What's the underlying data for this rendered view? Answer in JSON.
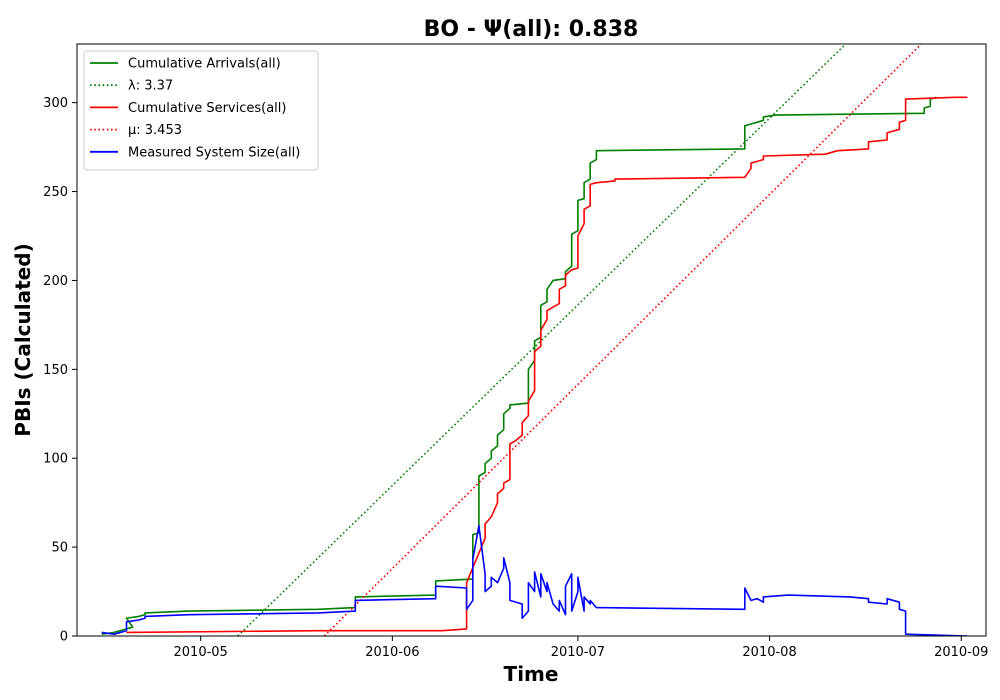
{
  "chart_data": {
    "type": "line",
    "title": "BO -  Ψ(all): 0.838",
    "xlabel": "Time",
    "ylabel": "PBIs (Calculated)",
    "xlim": [
      "2010-04-11",
      "2010-09-05"
    ],
    "ylim": [
      0,
      333
    ],
    "x_tick_labels": [
      "2010-05",
      "2010-06",
      "2010-07",
      "2010-08",
      "2010-09"
    ],
    "x_tick_dates": [
      "2010-05-01",
      "2010-06-01",
      "2010-07-01",
      "2010-08-01",
      "2010-09-01"
    ],
    "y_ticks": [
      0,
      50,
      100,
      150,
      200,
      250,
      300
    ],
    "grid": false,
    "legend_position": "top-left",
    "series": [
      {
        "name": "Cumulative Arrivals(all)",
        "style": "solid",
        "color": "#008000",
        "points": [
          [
            "2010-04-15",
            1
          ],
          [
            "2010-04-17",
            2
          ],
          [
            "2010-04-19",
            4
          ],
          [
            "2010-04-20",
            5
          ],
          [
            "2010-04-19",
            10
          ],
          [
            "2010-04-21",
            11
          ],
          [
            "2010-04-22",
            12
          ],
          [
            "2010-04-22",
            13
          ],
          [
            "2010-04-29",
            14
          ],
          [
            "2010-05-20",
            15
          ],
          [
            "2010-05-26",
            16
          ],
          [
            "2010-05-26",
            22
          ],
          [
            "2010-06-08",
            23
          ],
          [
            "2010-06-08",
            31
          ],
          [
            "2010-06-14",
            32
          ],
          [
            "2010-06-14",
            33
          ],
          [
            "2010-06-14",
            57
          ],
          [
            "2010-06-15",
            58
          ],
          [
            "2010-06-15",
            90
          ],
          [
            "2010-06-16",
            92
          ],
          [
            "2010-06-16",
            97
          ],
          [
            "2010-06-17",
            100
          ],
          [
            "2010-06-17",
            104
          ],
          [
            "2010-06-18",
            107
          ],
          [
            "2010-06-18",
            113
          ],
          [
            "2010-06-19",
            116
          ],
          [
            "2010-06-19",
            121
          ],
          [
            "2010-06-19",
            125
          ],
          [
            "2010-06-20",
            128
          ],
          [
            "2010-06-20",
            130
          ],
          [
            "2010-06-23",
            131
          ],
          [
            "2010-06-23",
            145
          ],
          [
            "2010-06-23",
            150
          ],
          [
            "2010-06-24",
            155
          ],
          [
            "2010-06-24",
            166
          ],
          [
            "2010-06-25",
            168
          ],
          [
            "2010-06-25",
            186
          ],
          [
            "2010-06-26",
            188
          ],
          [
            "2010-06-26",
            195
          ],
          [
            "2010-06-27",
            200
          ],
          [
            "2010-06-29",
            201
          ],
          [
            "2010-06-29",
            205
          ],
          [
            "2010-06-30",
            208
          ],
          [
            "2010-06-30",
            226
          ],
          [
            "2010-07-01",
            228
          ],
          [
            "2010-07-01",
            245
          ],
          [
            "2010-07-02",
            246
          ],
          [
            "2010-07-02",
            255
          ],
          [
            "2010-07-03",
            257
          ],
          [
            "2010-07-03",
            266
          ],
          [
            "2010-07-04",
            268
          ],
          [
            "2010-07-04",
            273
          ],
          [
            "2010-07-28",
            274
          ],
          [
            "2010-07-28",
            287
          ],
          [
            "2010-07-29",
            288
          ],
          [
            "2010-07-31",
            290
          ],
          [
            "2010-07-31",
            292
          ],
          [
            "2010-08-02",
            293
          ],
          [
            "2010-08-26",
            294
          ],
          [
            "2010-08-26",
            297
          ],
          [
            "2010-08-27",
            298
          ],
          [
            "2010-08-27",
            302
          ],
          [
            "2010-08-28",
            303
          ]
        ]
      },
      {
        "name": "λ: 3.37",
        "style": "dotted",
        "color": "#008000",
        "points": [
          [
            "2010-05-07",
            0
          ],
          [
            "2010-08-26",
            376
          ]
        ]
      },
      {
        "name": "Cumulative Services(all)",
        "style": "solid",
        "color": "#ff0000",
        "points": [
          [
            "2010-04-19",
            2
          ],
          [
            "2010-05-20",
            3
          ],
          [
            "2010-06-09",
            3
          ],
          [
            "2010-06-13",
            4
          ],
          [
            "2010-06-13",
            30
          ],
          [
            "2010-06-16",
            55
          ],
          [
            "2010-06-16",
            63
          ],
          [
            "2010-06-17",
            67
          ],
          [
            "2010-06-18",
            75
          ],
          [
            "2010-06-18",
            80
          ],
          [
            "2010-06-19",
            83
          ],
          [
            "2010-06-19",
            86
          ],
          [
            "2010-06-20",
            88
          ],
          [
            "2010-06-20",
            108
          ],
          [
            "2010-06-21",
            110
          ],
          [
            "2010-06-22",
            113
          ],
          [
            "2010-06-22",
            120
          ],
          [
            "2010-06-23",
            124
          ],
          [
            "2010-06-23",
            132
          ],
          [
            "2010-06-24",
            138
          ],
          [
            "2010-06-24",
            160
          ],
          [
            "2010-06-25",
            163
          ],
          [
            "2010-06-25",
            172
          ],
          [
            "2010-06-26",
            178
          ],
          [
            "2010-06-26",
            183
          ],
          [
            "2010-06-27",
            185
          ],
          [
            "2010-06-28",
            187
          ],
          [
            "2010-06-28",
            195
          ],
          [
            "2010-06-29",
            197
          ],
          [
            "2010-06-29",
            203
          ],
          [
            "2010-06-30",
            206
          ],
          [
            "2010-07-01",
            207
          ],
          [
            "2010-07-01",
            225
          ],
          [
            "2010-07-02",
            232
          ],
          [
            "2010-07-02",
            240
          ],
          [
            "2010-07-03",
            242
          ],
          [
            "2010-07-03",
            254
          ],
          [
            "2010-07-04",
            255
          ],
          [
            "2010-07-07",
            256
          ],
          [
            "2010-07-07",
            257
          ],
          [
            "2010-07-28",
            258
          ],
          [
            "2010-07-29",
            263
          ],
          [
            "2010-07-29",
            266
          ],
          [
            "2010-07-31",
            268
          ],
          [
            "2010-07-31",
            270
          ],
          [
            "2010-08-10",
            271
          ],
          [
            "2010-08-12",
            273
          ],
          [
            "2010-08-17",
            274
          ],
          [
            "2010-08-17",
            278
          ],
          [
            "2010-08-20",
            279
          ],
          [
            "2010-08-20",
            283
          ],
          [
            "2010-08-22",
            285
          ],
          [
            "2010-08-22",
            289
          ],
          [
            "2010-08-23",
            290
          ],
          [
            "2010-08-23",
            302
          ],
          [
            "2010-08-31",
            303
          ],
          [
            "2010-09-02",
            303
          ]
        ]
      },
      {
        "name": "μ: 3.453",
        "style": "dotted",
        "color": "#ff0000",
        "points": [
          [
            "2010-05-21",
            0
          ],
          [
            "2010-08-27",
            338
          ]
        ]
      },
      {
        "name": "Measured System Size(all)",
        "style": "solid",
        "color": "#0000ff",
        "points": [
          [
            "2010-04-15",
            2
          ],
          [
            "2010-04-17",
            1
          ],
          [
            "2010-04-19",
            3
          ],
          [
            "2010-04-19",
            8
          ],
          [
            "2010-04-21",
            9
          ],
          [
            "2010-04-22",
            10
          ],
          [
            "2010-04-22",
            11
          ],
          [
            "2010-04-29",
            12
          ],
          [
            "2010-05-20",
            13
          ],
          [
            "2010-05-26",
            14
          ],
          [
            "2010-05-26",
            20
          ],
          [
            "2010-06-08",
            21
          ],
          [
            "2010-06-08",
            28
          ],
          [
            "2010-06-13",
            27
          ],
          [
            "2010-06-13",
            15
          ],
          [
            "2010-06-14",
            20
          ],
          [
            "2010-06-14",
            43
          ],
          [
            "2010-06-15",
            62
          ],
          [
            "2010-06-16",
            35
          ],
          [
            "2010-06-16",
            25
          ],
          [
            "2010-06-17",
            28
          ],
          [
            "2010-06-17",
            33
          ],
          [
            "2010-06-18",
            30
          ],
          [
            "2010-06-19",
            38
          ],
          [
            "2010-06-19",
            44
          ],
          [
            "2010-06-20",
            30
          ],
          [
            "2010-06-20",
            20
          ],
          [
            "2010-06-22",
            18
          ],
          [
            "2010-06-22",
            10
          ],
          [
            "2010-06-23",
            14
          ],
          [
            "2010-06-23",
            30
          ],
          [
            "2010-06-24",
            25
          ],
          [
            "2010-06-24",
            36
          ],
          [
            "2010-06-25",
            22
          ],
          [
            "2010-06-25",
            35
          ],
          [
            "2010-06-26",
            25
          ],
          [
            "2010-06-26",
            30
          ],
          [
            "2010-06-27",
            18
          ],
          [
            "2010-06-28",
            14
          ],
          [
            "2010-06-28",
            20
          ],
          [
            "2010-06-29",
            12
          ],
          [
            "2010-06-29",
            28
          ],
          [
            "2010-06-30",
            35
          ],
          [
            "2010-06-30",
            14
          ],
          [
            "2010-07-01",
            25
          ],
          [
            "2010-07-01",
            33
          ],
          [
            "2010-07-02",
            14
          ],
          [
            "2010-07-02",
            22
          ],
          [
            "2010-07-03",
            18
          ],
          [
            "2010-07-03",
            20
          ],
          [
            "2010-07-04",
            16
          ],
          [
            "2010-07-28",
            15
          ],
          [
            "2010-07-28",
            27
          ],
          [
            "2010-07-29",
            20
          ],
          [
            "2010-07-30",
            21
          ],
          [
            "2010-07-31",
            19
          ],
          [
            "2010-07-31",
            22
          ],
          [
            "2010-08-04",
            23
          ],
          [
            "2010-08-14",
            22
          ],
          [
            "2010-08-17",
            21
          ],
          [
            "2010-08-17",
            19
          ],
          [
            "2010-08-20",
            18
          ],
          [
            "2010-08-20",
            21
          ],
          [
            "2010-08-22",
            19
          ],
          [
            "2010-08-22",
            15
          ],
          [
            "2010-08-23",
            14
          ],
          [
            "2010-08-23",
            1
          ],
          [
            "2010-09-02",
            0
          ]
        ]
      }
    ]
  }
}
